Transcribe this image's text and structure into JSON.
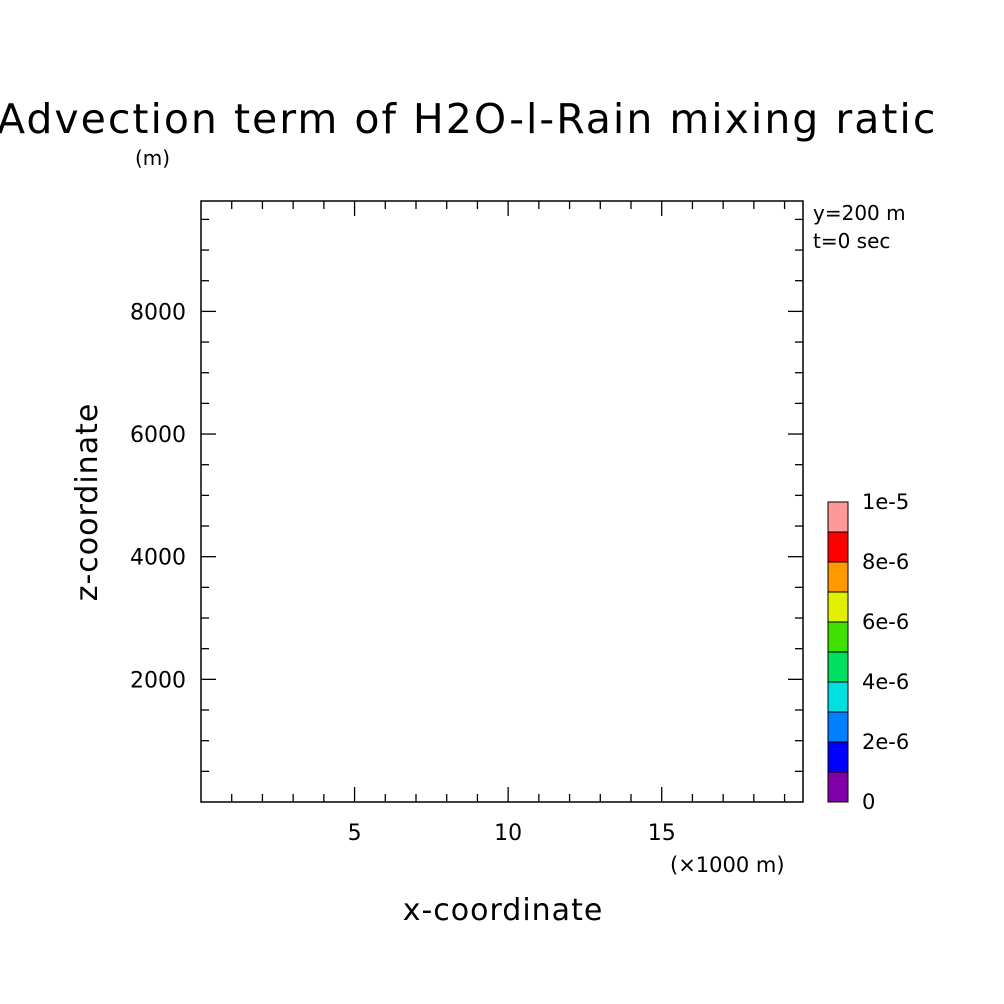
{
  "chart_data": {
    "type": "heatmap",
    "title": "Advection term of H2O-l-Rain mixing ratio",
    "title_visible": "Advection term of H2O-l-Rain mixing ratic",
    "ylabel": "z-coordinate",
    "yunit": "(m)",
    "xlabel": "x-coordinate",
    "xunit": "(×1000 m)",
    "xlim": [
      0,
      19.6
    ],
    "ylim": [
      0,
      9800
    ],
    "x_major_ticks": [
      5,
      10,
      15
    ],
    "x_minor_step": 1,
    "y_major_ticks": [
      2000,
      4000,
      6000,
      8000
    ],
    "y_minor_step": 500,
    "annotations": [
      "y=200 m",
      "t=0 sec"
    ],
    "values": [],
    "colorbar": {
      "bounds": [
        0,
        1e-06,
        2e-06,
        3e-06,
        4e-06,
        5e-06,
        6e-06,
        7e-06,
        8e-06,
        9e-06,
        1e-05
      ],
      "colors": [
        "#7f00a8",
        "#0000ff",
        "#0080ff",
        "#00e0e0",
        "#00e060",
        "#40e000",
        "#e0f000",
        "#ff9900",
        "#ff0000",
        "#ff9999"
      ],
      "labels": [
        "0",
        "2e-6",
        "4e-6",
        "6e-6",
        "8e-6",
        "1e-5"
      ],
      "label_values": [
        0,
        2e-06,
        4e-06,
        6e-06,
        8e-06,
        1e-05
      ]
    }
  }
}
